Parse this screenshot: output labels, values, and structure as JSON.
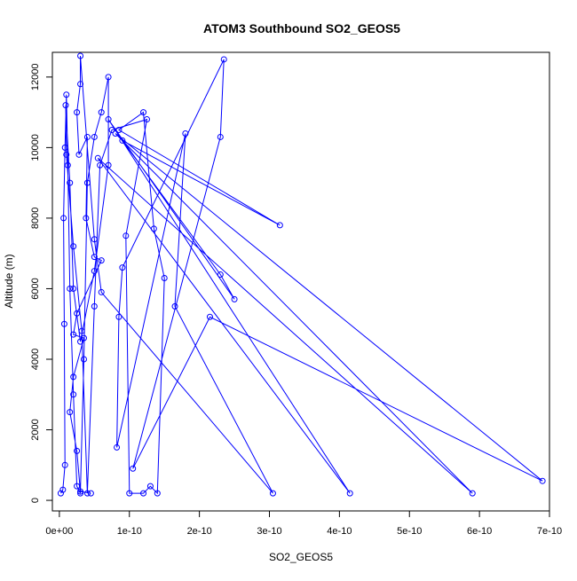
{
  "chart_data": {
    "type": "line",
    "title": "ATOM3 Southbound SO2_GEOS5",
    "xlabel": "SO2_GEOS5",
    "ylabel": "Altitude (m)",
    "xlim": [
      -1e-11,
      7e-10
    ],
    "ylim": [
      -300,
      12700
    ],
    "x_ticks": [
      0,
      1e-10,
      2e-10,
      3e-10,
      4e-10,
      5e-10,
      6e-10,
      7e-10
    ],
    "x_tick_labels": [
      "0e+00",
      "1e-10",
      "2e-10",
      "3e-10",
      "4e-10",
      "5e-10",
      "6e-10",
      "7e-10"
    ],
    "y_ticks": [
      0,
      2000,
      4000,
      6000,
      8000,
      10000,
      12000
    ],
    "y_tick_labels": [
      "0",
      "2000",
      "4000",
      "6000",
      "8000",
      "10000",
      "12000"
    ],
    "grid": false,
    "legend": "none",
    "series": [
      {
        "color": "#0000ff",
        "marker": "open-circle",
        "points": [
          [
            2e-12,
            200
          ],
          [
            5e-12,
            300
          ],
          [
            8e-12,
            1000
          ],
          [
            7e-12,
            5000
          ],
          [
            6e-12,
            8000
          ],
          [
            8e-12,
            10000
          ],
          [
            1e-11,
            11500
          ],
          [
            1.2e-11,
            9500
          ],
          [
            1.5e-11,
            6000
          ],
          [
            2e-11,
            3000
          ],
          [
            2.5e-11,
            400
          ],
          [
            3e-11,
            200
          ],
          [
            3.5e-11,
            4000
          ],
          [
            4e-11,
            9000
          ],
          [
            5e-11,
            10300
          ],
          [
            6e-11,
            11000
          ],
          [
            7e-11,
            12000
          ],
          [
            7e-11,
            9500
          ],
          [
            5e-11,
            6500
          ],
          [
            3e-11,
            4500
          ],
          [
            2e-11,
            6000
          ],
          [
            1.5e-11,
            9000
          ],
          [
            9e-12,
            11200
          ],
          [
            1e-11,
            9800
          ],
          [
            2e-11,
            7200
          ],
          [
            3.2e-11,
            4800
          ],
          [
            4e-11,
            200
          ],
          [
            5e-11,
            5500
          ],
          [
            5.8e-11,
            9500
          ],
          [
            7.5e-11,
            10500
          ],
          [
            1.25e-10,
            10800
          ],
          [
            9.5e-11,
            7500
          ],
          [
            1e-10,
            200
          ],
          [
            1.2e-10,
            200
          ],
          [
            1.3e-10,
            400
          ],
          [
            1.4e-10,
            200
          ],
          [
            1.5e-10,
            6300
          ],
          [
            1.35e-10,
            7700
          ],
          [
            1.2e-10,
            11000
          ],
          [
            8.5e-11,
            10500
          ],
          [
            3.15e-10,
            7800
          ],
          [
            9e-11,
            10200
          ],
          [
            2.3e-10,
            6400
          ],
          [
            2.5e-10,
            5700
          ],
          [
            7e-11,
            10800
          ],
          [
            4.15e-10,
            200
          ],
          [
            5.5e-11,
            9700
          ],
          [
            5.9e-10,
            200
          ],
          [
            8e-11,
            10400
          ],
          [
            6.9e-10,
            550
          ],
          [
            2.15e-10,
            5200
          ],
          [
            1.05e-10,
            900
          ],
          [
            2.3e-10,
            10300
          ],
          [
            2.35e-10,
            12500
          ],
          [
            9e-11,
            6600
          ],
          [
            8.5e-11,
            5200
          ],
          [
            8.2e-11,
            1500
          ],
          [
            1.8e-10,
            10400
          ],
          [
            1.65e-10,
            5500
          ],
          [
            3.05e-10,
            200
          ],
          [
            6e-11,
            5900
          ],
          [
            5e-11,
            7400
          ],
          [
            3e-11,
            12600
          ],
          [
            3e-11,
            11800
          ],
          [
            2.5e-11,
            11000
          ],
          [
            2.8e-11,
            9800
          ],
          [
            4e-11,
            10300
          ],
          [
            3.8e-11,
            8000
          ],
          [
            5e-11,
            6900
          ],
          [
            6e-11,
            6800
          ],
          [
            2.5e-11,
            5300
          ],
          [
            2e-11,
            4700
          ],
          [
            3.5e-11,
            4600
          ],
          [
            2e-11,
            3500
          ],
          [
            1.5e-11,
            2500
          ],
          [
            2.5e-11,
            1400
          ],
          [
            3e-11,
            250
          ],
          [
            4.5e-11,
            200
          ]
        ]
      }
    ]
  }
}
